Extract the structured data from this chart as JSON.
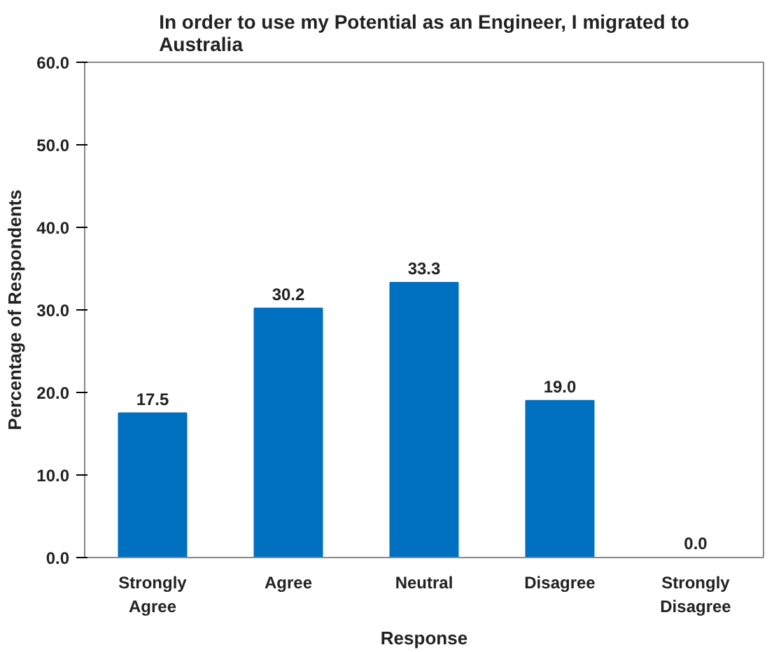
{
  "chart_data": {
    "type": "bar",
    "title": "In order to use my Potential as an Engineer, I migrated to Australia",
    "xlabel": "Response",
    "ylabel": "Percentage of Respondents",
    "categories": [
      "Strongly Agree",
      "Agree",
      "Neutral",
      "Disagree",
      "Strongly Disagree"
    ],
    "values": [
      17.5,
      30.2,
      33.3,
      19.0,
      0.0
    ],
    "color": "#0070c0",
    "value_labels": [
      "17.5",
      "30.2",
      "33.3",
      "19.0",
      "0.0"
    ],
    "ylim": [
      0,
      60
    ],
    "yticks": [
      {
        "value": 0,
        "label": "0.0"
      },
      {
        "value": 10,
        "label": "10.0"
      },
      {
        "value": 20,
        "label": "20.0"
      },
      {
        "value": 30,
        "label": "30.0"
      },
      {
        "value": 40,
        "label": "40.0"
      },
      {
        "value": 50,
        "label": "50.0"
      },
      {
        "value": 60,
        "label": "60.0"
      }
    ],
    "grid": false
  }
}
